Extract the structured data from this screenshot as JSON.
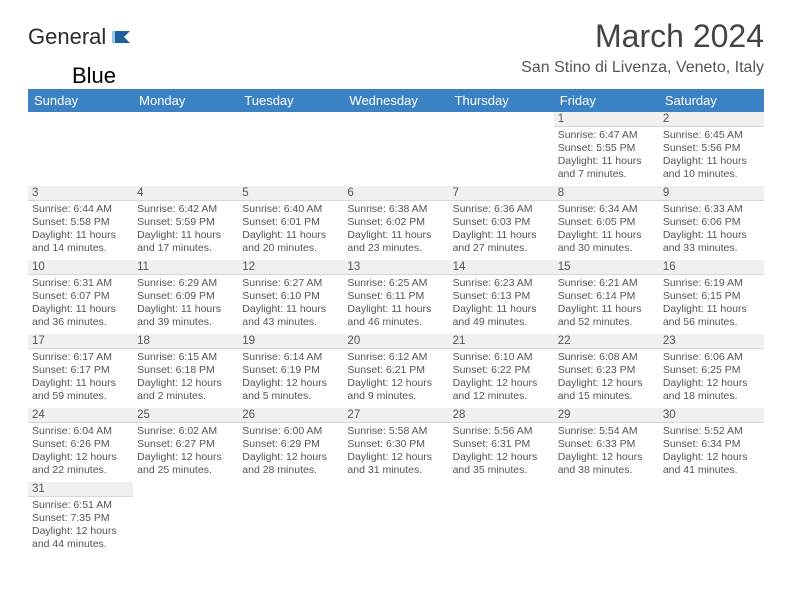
{
  "logo": {
    "word1": "General",
    "word2": "Blue"
  },
  "title": "March 2024",
  "location": "San Stino di Livenza, Veneto, Italy",
  "colors": {
    "header_bg": "#3b82c4",
    "day_bg": "#f0f0f0"
  },
  "weekdays": [
    "Sunday",
    "Monday",
    "Tuesday",
    "Wednesday",
    "Thursday",
    "Friday",
    "Saturday"
  ],
  "weeks": [
    [
      null,
      null,
      null,
      null,
      null,
      {
        "n": "1",
        "sr": "6:47 AM",
        "ss": "5:55 PM",
        "dl": "11 hours and 7 minutes."
      },
      {
        "n": "2",
        "sr": "6:45 AM",
        "ss": "5:56 PM",
        "dl": "11 hours and 10 minutes."
      }
    ],
    [
      {
        "n": "3",
        "sr": "6:44 AM",
        "ss": "5:58 PM",
        "dl": "11 hours and 14 minutes."
      },
      {
        "n": "4",
        "sr": "6:42 AM",
        "ss": "5:59 PM",
        "dl": "11 hours and 17 minutes."
      },
      {
        "n": "5",
        "sr": "6:40 AM",
        "ss": "6:01 PM",
        "dl": "11 hours and 20 minutes."
      },
      {
        "n": "6",
        "sr": "6:38 AM",
        "ss": "6:02 PM",
        "dl": "11 hours and 23 minutes."
      },
      {
        "n": "7",
        "sr": "6:36 AM",
        "ss": "6:03 PM",
        "dl": "11 hours and 27 minutes."
      },
      {
        "n": "8",
        "sr": "6:34 AM",
        "ss": "6:05 PM",
        "dl": "11 hours and 30 minutes."
      },
      {
        "n": "9",
        "sr": "6:33 AM",
        "ss": "6:06 PM",
        "dl": "11 hours and 33 minutes."
      }
    ],
    [
      {
        "n": "10",
        "sr": "6:31 AM",
        "ss": "6:07 PM",
        "dl": "11 hours and 36 minutes."
      },
      {
        "n": "11",
        "sr": "6:29 AM",
        "ss": "6:09 PM",
        "dl": "11 hours and 39 minutes."
      },
      {
        "n": "12",
        "sr": "6:27 AM",
        "ss": "6:10 PM",
        "dl": "11 hours and 43 minutes."
      },
      {
        "n": "13",
        "sr": "6:25 AM",
        "ss": "6:11 PM",
        "dl": "11 hours and 46 minutes."
      },
      {
        "n": "14",
        "sr": "6:23 AM",
        "ss": "6:13 PM",
        "dl": "11 hours and 49 minutes."
      },
      {
        "n": "15",
        "sr": "6:21 AM",
        "ss": "6:14 PM",
        "dl": "11 hours and 52 minutes."
      },
      {
        "n": "16",
        "sr": "6:19 AM",
        "ss": "6:15 PM",
        "dl": "11 hours and 56 minutes."
      }
    ],
    [
      {
        "n": "17",
        "sr": "6:17 AM",
        "ss": "6:17 PM",
        "dl": "11 hours and 59 minutes."
      },
      {
        "n": "18",
        "sr": "6:15 AM",
        "ss": "6:18 PM",
        "dl": "12 hours and 2 minutes."
      },
      {
        "n": "19",
        "sr": "6:14 AM",
        "ss": "6:19 PM",
        "dl": "12 hours and 5 minutes."
      },
      {
        "n": "20",
        "sr": "6:12 AM",
        "ss": "6:21 PM",
        "dl": "12 hours and 9 minutes."
      },
      {
        "n": "21",
        "sr": "6:10 AM",
        "ss": "6:22 PM",
        "dl": "12 hours and 12 minutes."
      },
      {
        "n": "22",
        "sr": "6:08 AM",
        "ss": "6:23 PM",
        "dl": "12 hours and 15 minutes."
      },
      {
        "n": "23",
        "sr": "6:06 AM",
        "ss": "6:25 PM",
        "dl": "12 hours and 18 minutes."
      }
    ],
    [
      {
        "n": "24",
        "sr": "6:04 AM",
        "ss": "6:26 PM",
        "dl": "12 hours and 22 minutes."
      },
      {
        "n": "25",
        "sr": "6:02 AM",
        "ss": "6:27 PM",
        "dl": "12 hours and 25 minutes."
      },
      {
        "n": "26",
        "sr": "6:00 AM",
        "ss": "6:29 PM",
        "dl": "12 hours and 28 minutes."
      },
      {
        "n": "27",
        "sr": "5:58 AM",
        "ss": "6:30 PM",
        "dl": "12 hours and 31 minutes."
      },
      {
        "n": "28",
        "sr": "5:56 AM",
        "ss": "6:31 PM",
        "dl": "12 hours and 35 minutes."
      },
      {
        "n": "29",
        "sr": "5:54 AM",
        "ss": "6:33 PM",
        "dl": "12 hours and 38 minutes."
      },
      {
        "n": "30",
        "sr": "5:52 AM",
        "ss": "6:34 PM",
        "dl": "12 hours and 41 minutes."
      }
    ],
    [
      {
        "n": "31",
        "sr": "6:51 AM",
        "ss": "7:35 PM",
        "dl": "12 hours and 44 minutes."
      },
      null,
      null,
      null,
      null,
      null,
      null
    ]
  ],
  "labels": {
    "sunrise": "Sunrise:",
    "sunset": "Sunset:",
    "daylight": "Daylight:"
  }
}
